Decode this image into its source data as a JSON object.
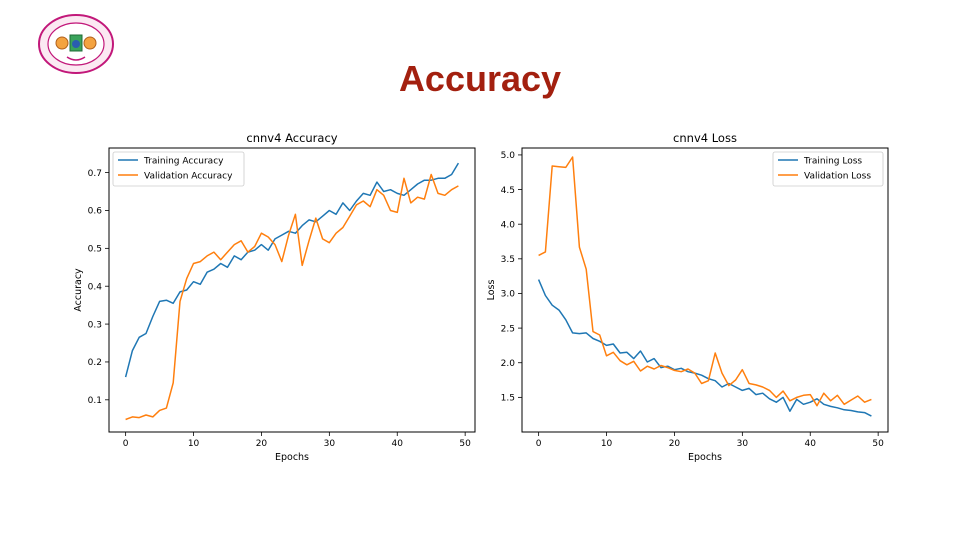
{
  "slide": {
    "title": "Accuracy",
    "logo_icon": "university-seal-icon"
  },
  "colors": {
    "title": "#a3200f",
    "training": "#1f77b4",
    "validation": "#ff7f0e"
  },
  "chart_data": [
    {
      "type": "line",
      "title": "cnnv4 Accuracy",
      "xlabel": "Epochs",
      "ylabel": "Accuracy",
      "xlim": [
        -2.45,
        51.45
      ],
      "ylim": [
        0.015,
        0.765
      ],
      "xticks": [
        0,
        10,
        20,
        30,
        40,
        50
      ],
      "yticks": [
        0.1,
        0.2,
        0.3,
        0.4,
        0.5,
        0.6,
        0.7
      ],
      "ytick_labels": [
        "0.1",
        "0.2",
        "0.3",
        "0.4",
        "0.5",
        "0.6",
        "0.7"
      ],
      "legend_position": "top-left",
      "x": [
        0,
        1,
        2,
        3,
        4,
        5,
        6,
        7,
        8,
        9,
        10,
        11,
        12,
        13,
        14,
        15,
        16,
        17,
        18,
        19,
        20,
        21,
        22,
        23,
        24,
        25,
        26,
        27,
        28,
        29,
        30,
        31,
        32,
        33,
        34,
        35,
        36,
        37,
        38,
        39,
        40,
        41,
        42,
        43,
        44,
        45,
        46,
        47,
        48,
        49
      ],
      "series": [
        {
          "name": "Training Accuracy",
          "color": "#1f77b4",
          "values": [
            0.16,
            0.23,
            0.265,
            0.275,
            0.32,
            0.36,
            0.363,
            0.355,
            0.385,
            0.39,
            0.412,
            0.405,
            0.437,
            0.445,
            0.46,
            0.45,
            0.48,
            0.47,
            0.49,
            0.495,
            0.51,
            0.495,
            0.525,
            0.535,
            0.545,
            0.54,
            0.56,
            0.575,
            0.57,
            0.585,
            0.6,
            0.59,
            0.62,
            0.6,
            0.625,
            0.645,
            0.64,
            0.675,
            0.65,
            0.655,
            0.645,
            0.64,
            0.655,
            0.67,
            0.68,
            0.68,
            0.685,
            0.685,
            0.695,
            0.725
          ]
        },
        {
          "name": "Validation Accuracy",
          "color": "#ff7f0e",
          "values": [
            0.048,
            0.055,
            0.053,
            0.06,
            0.055,
            0.072,
            0.078,
            0.145,
            0.36,
            0.42,
            0.46,
            0.465,
            0.48,
            0.49,
            0.47,
            0.49,
            0.51,
            0.52,
            0.49,
            0.505,
            0.54,
            0.53,
            0.51,
            0.465,
            0.535,
            0.59,
            0.455,
            0.52,
            0.58,
            0.525,
            0.515,
            0.54,
            0.555,
            0.585,
            0.615,
            0.625,
            0.61,
            0.655,
            0.64,
            0.6,
            0.595,
            0.685,
            0.62,
            0.635,
            0.63,
            0.695,
            0.645,
            0.64,
            0.655,
            0.665
          ]
        }
      ]
    },
    {
      "type": "line",
      "title": "cnnv4 Loss",
      "xlabel": "Epochs",
      "ylabel": "Loss",
      "xlim": [
        -2.45,
        51.45
      ],
      "ylim": [
        1.0,
        5.1
      ],
      "xticks": [
        0,
        10,
        20,
        30,
        40,
        50
      ],
      "yticks": [
        1.5,
        2.0,
        2.5,
        3.0,
        3.5,
        4.0,
        4.5,
        5.0
      ],
      "ytick_labels": [
        "1.5",
        "2.0",
        "2.5",
        "3.0",
        "3.5",
        "4.0",
        "4.5",
        "5.0"
      ],
      "legend_position": "top-right",
      "x": [
        0,
        1,
        2,
        3,
        4,
        5,
        6,
        7,
        8,
        9,
        10,
        11,
        12,
        13,
        14,
        15,
        16,
        17,
        18,
        19,
        20,
        21,
        22,
        23,
        24,
        25,
        26,
        27,
        28,
        29,
        30,
        31,
        32,
        33,
        34,
        35,
        36,
        37,
        38,
        39,
        40,
        41,
        42,
        43,
        44,
        45,
        46,
        47,
        48,
        49
      ],
      "series": [
        {
          "name": "Training Loss",
          "color": "#1f77b4",
          "values": [
            3.2,
            2.97,
            2.83,
            2.76,
            2.62,
            2.43,
            2.42,
            2.43,
            2.35,
            2.31,
            2.25,
            2.27,
            2.14,
            2.15,
            2.06,
            2.17,
            2.01,
            2.06,
            1.93,
            1.95,
            1.9,
            1.92,
            1.87,
            1.85,
            1.82,
            1.77,
            1.74,
            1.65,
            1.7,
            1.65,
            1.6,
            1.63,
            1.54,
            1.56,
            1.48,
            1.43,
            1.5,
            1.3,
            1.47,
            1.4,
            1.43,
            1.48,
            1.4,
            1.37,
            1.35,
            1.32,
            1.31,
            1.29,
            1.28,
            1.23
          ]
        },
        {
          "name": "Validation Loss",
          "color": "#ff7f0e",
          "values": [
            3.55,
            3.6,
            4.84,
            4.83,
            4.82,
            4.97,
            3.67,
            3.35,
            2.45,
            2.4,
            2.1,
            2.15,
            2.03,
            1.97,
            2.02,
            1.88,
            1.95,
            1.91,
            1.96,
            1.93,
            1.89,
            1.87,
            1.91,
            1.85,
            1.7,
            1.74,
            2.14,
            1.85,
            1.67,
            1.75,
            1.9,
            1.7,
            1.68,
            1.65,
            1.6,
            1.5,
            1.59,
            1.45,
            1.5,
            1.53,
            1.54,
            1.38,
            1.56,
            1.45,
            1.53,
            1.4,
            1.46,
            1.52,
            1.43,
            1.47
          ]
        }
      ]
    }
  ]
}
